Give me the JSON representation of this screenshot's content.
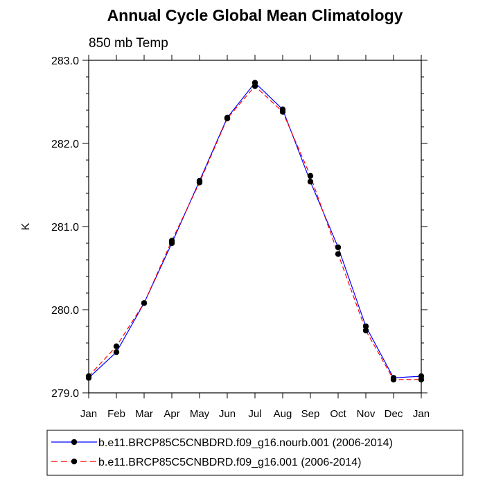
{
  "chart_data": {
    "type": "line",
    "title": "Annual Cycle Global Mean Climatology",
    "subtitle": "850 mb Temp",
    "xlabel": "",
    "ylabel": "K",
    "categories": [
      "Jan",
      "Feb",
      "Mar",
      "Apr",
      "May",
      "Jun",
      "Jul",
      "Aug",
      "Sep",
      "Oct",
      "Nov",
      "Dec",
      "Jan"
    ],
    "ylim": [
      279.0,
      283.0
    ],
    "yticks": [
      "279.0",
      "280.0",
      "281.0",
      "282.0",
      "283.0"
    ],
    "series": [
      {
        "name": "b.e11.BRCP85C5CNBDRD.f09_g16.nourb.001 (2006-2014)",
        "color": "#0000ff",
        "dash": "solid",
        "values": [
          279.18,
          279.49,
          280.08,
          280.8,
          281.55,
          282.31,
          282.73,
          282.41,
          281.54,
          280.75,
          279.8,
          279.18,
          279.2
        ]
      },
      {
        "name": "b.e11.BRCP85C5CNBDRD.f09_g16.001 (2006-2014)",
        "color": "#ff0000",
        "dash": "dashed",
        "values": [
          279.2,
          279.56,
          280.08,
          280.83,
          281.53,
          282.3,
          282.69,
          282.38,
          281.61,
          280.67,
          279.75,
          279.16,
          279.16
        ]
      }
    ],
    "legend_position": "bottom"
  }
}
